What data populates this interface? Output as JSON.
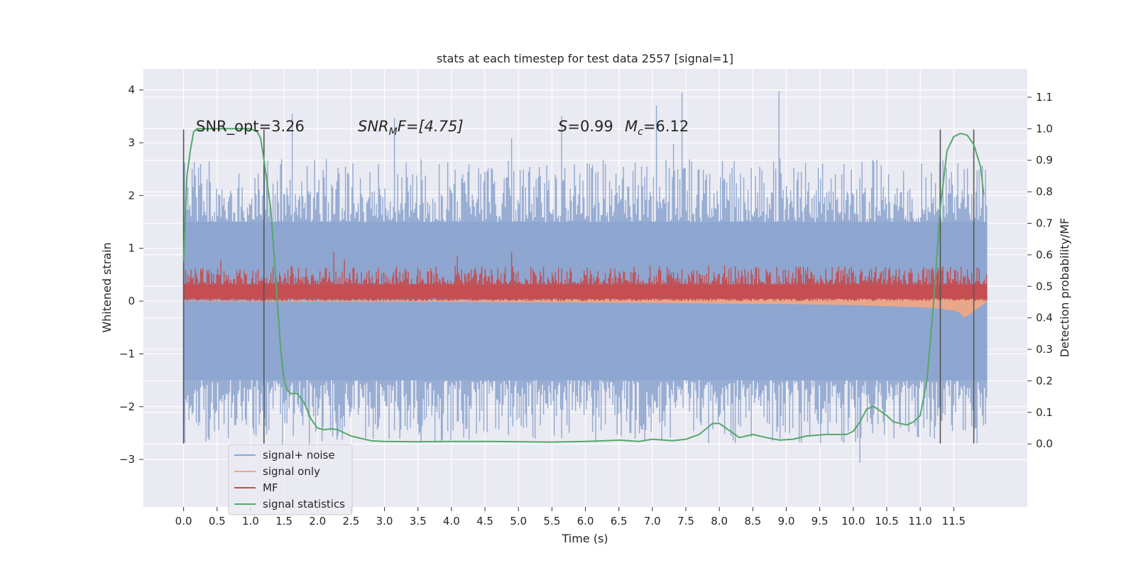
{
  "chart_data": {
    "type": "line",
    "title": "stats at each timestep for test data 2557 [signal=1]",
    "xlabel": "Time (s)",
    "ylabel": "Whitened strain",
    "y2label": "Detection probability/MF",
    "xlim": [
      -0.6,
      12.6
    ],
    "ylim": [
      -3.9,
      4.4
    ],
    "y2lim": [
      -0.2,
      1.19
    ],
    "x_ticks": [
      "0.0",
      "0.5",
      "1.0",
      "1.5",
      "2.0",
      "2.5",
      "3.0",
      "3.5",
      "4.0",
      "4.5",
      "5.0",
      "5.5",
      "6.0",
      "6.5",
      "7.0",
      "7.5",
      "8.0",
      "8.5",
      "9.0",
      "9.5",
      "10.0",
      "10.5",
      "11.0",
      "11.5"
    ],
    "y_ticks": [
      "−3",
      "−2",
      "−1",
      "0",
      "1",
      "2",
      "3",
      "4"
    ],
    "y2_ticks": [
      "0.0",
      "0.1",
      "0.2",
      "0.3",
      "0.4",
      "0.5",
      "0.6",
      "0.7",
      "0.8",
      "0.9",
      "1.0",
      "1.1"
    ],
    "grid": true,
    "legend_position": "bottom-left",
    "colors": {
      "signal_noise": "#8da5cf",
      "signal_only": "#e9a78a",
      "mf": "#c44e52",
      "statistics": "#55a868",
      "vline": "#555555",
      "background": "#eaeaf2"
    },
    "annotations": {
      "snr_opt": "SNR_opt=3.26",
      "snr_mf_name": "SNR",
      "snr_mf_sub": "M",
      "snr_mf_tail": "F=[4.75]",
      "s_name": "S",
      "s_tail": "=0.99",
      "mc_name": "M",
      "mc_sub": "c",
      "mc_tail": "=6.12"
    },
    "vlines_x": [
      0.0,
      1.2,
      11.3,
      11.8
    ],
    "series": [
      {
        "name": "signal+ noise",
        "type": "noise",
        "x_range": [
          0.0,
          12.0
        ],
        "band_low": -1.5,
        "band_high": 1.5,
        "typical_max": 2.5,
        "typical_min": -2.5,
        "peak_max": 4.1,
        "peak_min": -3.3
      },
      {
        "name": "signal only",
        "x": [
          0.0,
          2,
          4,
          6,
          7,
          8,
          9,
          10,
          10.5,
          11,
          11.3,
          11.5,
          11.6,
          11.65,
          11.7,
          12.0
        ],
        "upper": [
          0.0,
          0.005,
          0.01,
          0.03,
          0.04,
          0.06,
          0.08,
          0.1,
          0.12,
          0.13,
          0.14,
          0.14,
          0.15,
          0.15,
          0.14,
          0.12
        ],
        "lower": [
          0.0,
          -0.005,
          -0.01,
          -0.02,
          -0.03,
          -0.04,
          -0.05,
          -0.07,
          -0.09,
          -0.11,
          -0.14,
          -0.17,
          -0.22,
          -0.3,
          -0.28,
          0.0
        ]
      },
      {
        "name": "MF",
        "x_range": [
          0.0,
          12.0
        ],
        "y_min": 0.0,
        "center": 0.22,
        "peak_top": 0.95
      },
      {
        "name": "signal statistics",
        "x": [
          0.0,
          0.05,
          0.1,
          0.15,
          0.2,
          0.3,
          0.5,
          0.8,
          1.0,
          1.1,
          1.15,
          1.2,
          1.3,
          1.4,
          1.45,
          1.5,
          1.55,
          1.6,
          1.7,
          1.8,
          1.9,
          2.0,
          2.1,
          2.2,
          2.3,
          2.5,
          2.8,
          3.0,
          3.5,
          4.0,
          4.5,
          5.0,
          5.5,
          6.0,
          6.3,
          6.5,
          6.8,
          7.0,
          7.3,
          7.5,
          7.7,
          7.9,
          8.0,
          8.1,
          8.3,
          8.5,
          8.7,
          8.9,
          9.1,
          9.3,
          9.6,
          9.9,
          10.0,
          10.1,
          10.2,
          10.3,
          10.5,
          10.6,
          10.8,
          10.9,
          11.0,
          11.1,
          11.2,
          11.3,
          11.4,
          11.5,
          11.6,
          11.7,
          11.8,
          11.9,
          11.95
        ],
        "y": [
          0.58,
          0.85,
          0.93,
          0.99,
          1.0,
          1.0,
          1.0,
          1.0,
          1.0,
          0.99,
          0.97,
          0.9,
          0.75,
          0.45,
          0.3,
          0.2,
          0.17,
          0.16,
          0.16,
          0.13,
          0.08,
          0.05,
          0.045,
          0.048,
          0.045,
          0.025,
          0.01,
          0.008,
          0.007,
          0.008,
          0.008,
          0.007,
          0.006,
          0.008,
          0.01,
          0.012,
          0.008,
          0.015,
          0.01,
          0.015,
          0.03,
          0.065,
          0.065,
          0.05,
          0.02,
          0.03,
          0.02,
          0.012,
          0.015,
          0.025,
          0.03,
          0.03,
          0.04,
          0.07,
          0.11,
          0.12,
          0.09,
          0.07,
          0.06,
          0.07,
          0.09,
          0.2,
          0.45,
          0.75,
          0.93,
          0.975,
          0.985,
          0.98,
          0.95,
          0.88,
          0.79
        ]
      }
    ]
  }
}
